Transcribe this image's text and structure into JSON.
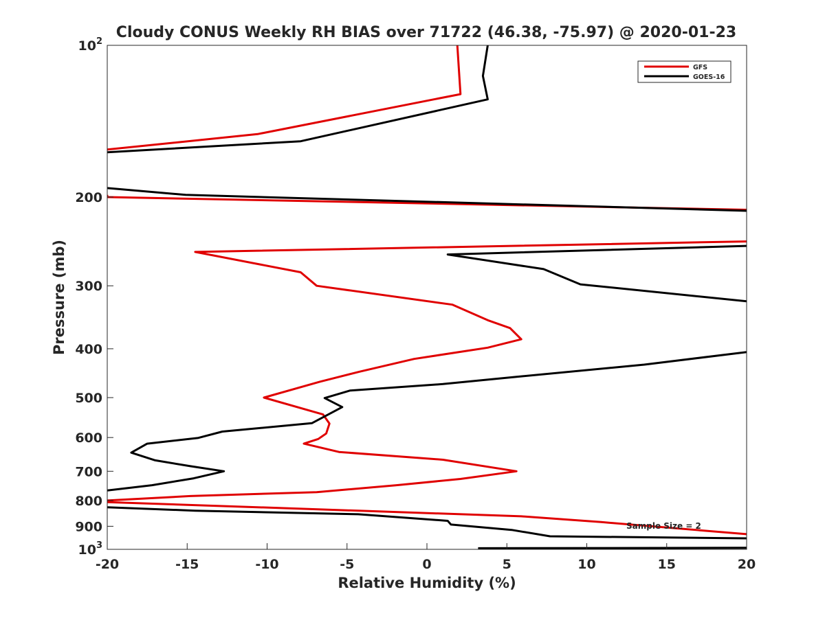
{
  "chart_data": {
    "type": "line",
    "title": "Cloudy CONUS Weekly RH BIAS over 71722 (46.38, -75.97) @ 2020-01-23",
    "xlabel": "Relative Humidity (%)",
    "ylabel": "Pressure (mb)",
    "xlim": [
      -20,
      20
    ],
    "ylim": [
      100,
      1000
    ],
    "yscale": "log",
    "y_reversed": true,
    "grid": false,
    "legend_position": "top-right",
    "x_ticks": [
      {
        "value": -20,
        "label": "-20"
      },
      {
        "value": -15,
        "label": "-15"
      },
      {
        "value": -10,
        "label": "-10"
      },
      {
        "value": -5,
        "label": "-5"
      },
      {
        "value": 0,
        "label": "0"
      },
      {
        "value": 5,
        "label": "5"
      },
      {
        "value": 10,
        "label": "10"
      },
      {
        "value": 15,
        "label": "15"
      },
      {
        "value": 20,
        "label": "20"
      }
    ],
    "y_ticks": [
      {
        "value": 100,
        "label": "10",
        "sup": "2"
      },
      {
        "value": 200,
        "label": "200"
      },
      {
        "value": 300,
        "label": "300"
      },
      {
        "value": 400,
        "label": "400"
      },
      {
        "value": 500,
        "label": "500"
      },
      {
        "value": 600,
        "label": "600"
      },
      {
        "value": 700,
        "label": "700"
      },
      {
        "value": 800,
        "label": "800"
      },
      {
        "value": 900,
        "label": "900"
      },
      {
        "value": 1000,
        "label": "10",
        "sup": "3"
      }
    ],
    "annotation": "Sample Size = 2",
    "series": [
      {
        "name": "GFS",
        "color": "#e00000",
        "points": [
          [
            1.9,
            100
          ],
          [
            2.1,
            125
          ],
          [
            -10.6,
            150
          ],
          [
            -20,
            161
          ],
          [
            null,
            195
          ],
          [
            -20,
            198
          ],
          [
            -20,
            200
          ],
          [
            20,
            212
          ],
          [
            null,
            236
          ],
          [
            20,
            245
          ],
          [
            -14.5,
            257
          ],
          [
            -7.9,
            282
          ],
          [
            -6.9,
            300
          ],
          [
            1.6,
            327
          ],
          [
            3.8,
            351
          ],
          [
            5.2,
            364
          ],
          [
            5.9,
            383
          ],
          [
            3.8,
            398
          ],
          [
            -0.8,
            419
          ],
          [
            -4.2,
            444
          ],
          [
            -6.7,
            465
          ],
          [
            -10.2,
            500
          ],
          [
            -6.5,
            540
          ],
          [
            -6.1,
            563
          ],
          [
            -6.3,
            589
          ],
          [
            -6.8,
            604
          ],
          [
            -7.7,
            617
          ],
          [
            -5.5,
            641
          ],
          [
            1.0,
            664
          ],
          [
            5.6,
            700
          ],
          [
            2.1,
            725
          ],
          [
            -1.9,
            746
          ],
          [
            -6.9,
            770
          ],
          [
            -14.8,
            784
          ],
          [
            -20,
            800
          ],
          [
            -20,
            806
          ],
          [
            5.9,
            860
          ],
          [
            10.9,
            883
          ],
          [
            20,
            933
          ]
        ]
      },
      {
        "name": "GOES-16",
        "color": "#000000",
        "points": [
          [
            3.8,
            100
          ],
          [
            3.5,
            115
          ],
          [
            3.8,
            128
          ],
          [
            -7.9,
            155
          ],
          [
            -20,
            163
          ],
          [
            null,
            190
          ],
          [
            -20,
            192
          ],
          [
            -15.1,
            198
          ],
          [
            20,
            213
          ],
          [
            null,
            240
          ],
          [
            20,
            250
          ],
          [
            1.3,
            260
          ],
          [
            7.3,
            278
          ],
          [
            9.6,
            298
          ],
          [
            20,
            322
          ],
          [
            null,
            402
          ],
          [
            20,
            406
          ],
          [
            13.6,
            430
          ],
          [
            5.5,
            455
          ],
          [
            1.0,
            470
          ],
          [
            -4.8,
            484
          ],
          [
            -6.4,
            501
          ],
          [
            -5.3,
            522
          ],
          [
            -7.2,
            562
          ],
          [
            -12.8,
            584
          ],
          [
            -14.3,
            601
          ],
          [
            -17.5,
            617
          ],
          [
            -18.5,
            643
          ],
          [
            -17.0,
            666
          ],
          [
            -14.8,
            684
          ],
          [
            -12.7,
            700
          ],
          [
            -14.6,
            723
          ],
          [
            -17.2,
            746
          ],
          [
            -20,
            764
          ],
          [
            null,
            820
          ],
          [
            -20,
            825
          ],
          [
            -14.5,
            838
          ],
          [
            -4.3,
            852
          ],
          [
            1.3,
            878
          ],
          [
            1.5,
            893
          ],
          [
            5.3,
            915
          ],
          [
            7.7,
            942
          ],
          [
            20,
            951
          ],
          [
            null,
            980
          ],
          [
            3.2,
            995
          ],
          [
            20,
            993
          ]
        ]
      }
    ]
  }
}
